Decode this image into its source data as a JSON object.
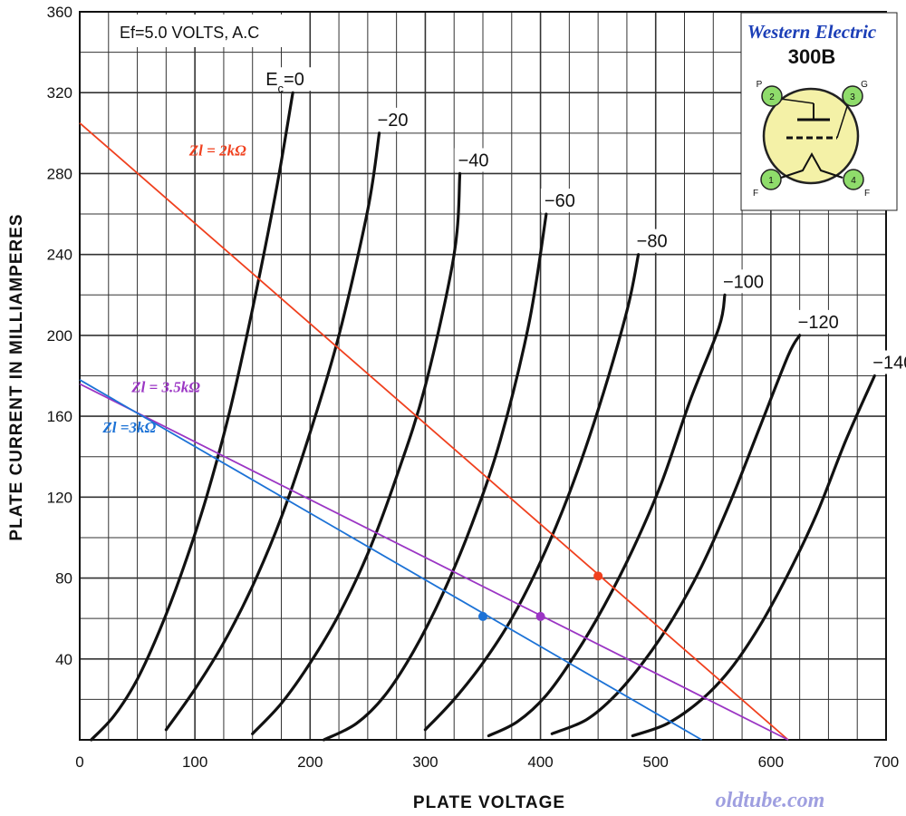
{
  "chart_data": {
    "type": "line",
    "xlabel": "PLATE VOLTAGE",
    "ylabel": "PLATE CURRENT IN MILLIAMPERES",
    "xlim": [
      0,
      700
    ],
    "ylim": [
      0,
      360
    ],
    "x_ticks": [
      "0",
      "100",
      "200",
      "300",
      "400",
      "500",
      "600",
      "700"
    ],
    "y_ticks": [
      "40",
      "80",
      "120",
      "160",
      "200",
      "240",
      "280",
      "320",
      "360"
    ],
    "grid": true,
    "filament_note": "Ef=5.0 VOLTS, A.C",
    "series": [
      {
        "name": "Ec=0",
        "label": "Ec=0",
        "x": [
          10,
          30,
          50,
          70,
          90,
          110,
          130,
          150,
          170,
          185
        ],
        "y": [
          0,
          12,
          30,
          55,
          85,
          120,
          162,
          213,
          270,
          320
        ]
      },
      {
        "name": "-20",
        "label": "−20",
        "x": [
          75,
          100,
          125,
          150,
          175,
          200,
          225,
          250,
          260
        ],
        "y": [
          5,
          25,
          48,
          76,
          110,
          152,
          200,
          262,
          300
        ]
      },
      {
        "name": "-40",
        "label": "−40",
        "x": [
          150,
          175,
          200,
          225,
          250,
          275,
          300,
          325,
          330
        ],
        "y": [
          3,
          18,
          38,
          62,
          92,
          130,
          175,
          240,
          280
        ]
      },
      {
        "name": "-60",
        "label": "−60",
        "x": [
          212,
          240,
          265,
          290,
          315,
          340,
          365,
          390,
          405
        ],
        "y": [
          0,
          8,
          22,
          44,
          72,
          106,
          148,
          206,
          260
        ]
      },
      {
        "name": "-80",
        "label": "−80",
        "x": [
          300,
          325,
          350,
          375,
          400,
          425,
          450,
          475,
          485
        ],
        "y": [
          5,
          20,
          38,
          60,
          88,
          122,
          163,
          212,
          240
        ]
      },
      {
        "name": "-100",
        "label": "−100",
        "x": [
          355,
          380,
          405,
          430,
          455,
          480,
          505,
          530,
          555,
          560
        ],
        "y": [
          2,
          9,
          22,
          42,
          66,
          94,
          127,
          168,
          204,
          220
        ]
      },
      {
        "name": "-120",
        "label": "−120",
        "x": [
          410,
          440,
          465,
          490,
          515,
          540,
          565,
          590,
          615,
          625
        ],
        "y": [
          3,
          10,
          22,
          39,
          60,
          86,
          118,
          154,
          190,
          200
        ]
      },
      {
        "name": "-140",
        "label": "−140",
        "x": [
          480,
          510,
          540,
          565,
          590,
          615,
          640,
          665,
          690
        ],
        "y": [
          2,
          8,
          20,
          35,
          56,
          82,
          112,
          148,
          180
        ]
      }
    ],
    "load_lines": [
      {
        "label": "Zl = 2kΩ",
        "color": "#f0401e",
        "x": [
          0,
          615
        ],
        "y": [
          305,
          0
        ],
        "point": [
          450,
          81
        ],
        "label_at": [
          95,
          289
        ]
      },
      {
        "label": "Zl = 3.5kΩ",
        "color": "#9b35c4",
        "x": [
          0,
          615
        ],
        "y": [
          176,
          0
        ],
        "point": [
          400,
          61
        ],
        "label_at": [
          45,
          172
        ]
      },
      {
        "label": "Zl =3kΩ",
        "color": "#1c72d6",
        "x": [
          0,
          540
        ],
        "y": [
          178,
          0
        ],
        "point": [
          350,
          61
        ],
        "label_at": [
          20,
          152
        ]
      }
    ]
  },
  "tube": {
    "brand": "Western Electric",
    "model": "300B",
    "pins": [
      {
        "num": "2",
        "name": "P"
      },
      {
        "num": "3",
        "name": "G"
      },
      {
        "num": "1",
        "name": "F"
      },
      {
        "num": "4",
        "name": "F"
      }
    ],
    "colors": {
      "bulb": "#f4f1a7",
      "pin": "#8fdc6b",
      "frame": "#222222"
    }
  },
  "watermark": "oldtube.com"
}
